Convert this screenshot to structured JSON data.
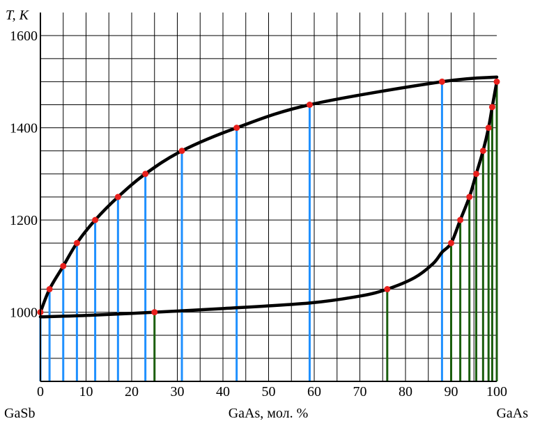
{
  "chart_data": {
    "type": "line",
    "ylabel": "T, К",
    "xlabel": "GaAs, мол. %",
    "x_left_label": "GaSb",
    "x_right_label": "GaAs",
    "xlim": [
      0,
      100
    ],
    "ylim": [
      850,
      1650
    ],
    "x_ticks": [
      0,
      10,
      20,
      30,
      40,
      50,
      60,
      70,
      80,
      90,
      100
    ],
    "y_ticks": [
      1000,
      1200,
      1400,
      1600
    ],
    "grid": true,
    "series": [
      {
        "kind": "liquidus",
        "x": [
          0,
          2,
          5,
          8,
          12,
          17,
          23,
          31,
          43,
          59,
          88,
          100
        ],
        "y": [
          1000,
          1050,
          1100,
          1150,
          1200,
          1250,
          1300,
          1350,
          1400,
          1450,
          1500,
          1510
        ]
      },
      {
        "kind": "solidus",
        "x": [
          0,
          10,
          25,
          40,
          59,
          70,
          76,
          82,
          86,
          88,
          90,
          92,
          94,
          95.5,
          97,
          98.2,
          99,
          100
        ],
        "y": [
          990,
          993,
          1000,
          1008,
          1020,
          1035,
          1050,
          1075,
          1105,
          1130,
          1150,
          1200,
          1250,
          1300,
          1350,
          1400,
          1445,
          1500
        ]
      }
    ],
    "markers": [
      {
        "x": 0,
        "y": 1000,
        "line": "blue"
      },
      {
        "x": 2,
        "y": 1050,
        "line": "blue"
      },
      {
        "x": 5,
        "y": 1100,
        "line": "blue"
      },
      {
        "x": 8,
        "y": 1150,
        "line": "blue"
      },
      {
        "x": 12,
        "y": 1200,
        "line": "blue"
      },
      {
        "x": 17,
        "y": 1250,
        "line": "blue"
      },
      {
        "x": 23,
        "y": 1300,
        "line": "blue"
      },
      {
        "x": 31,
        "y": 1350,
        "line": "blue"
      },
      {
        "x": 43,
        "y": 1400,
        "line": "blue"
      },
      {
        "x": 59,
        "y": 1450,
        "line": "blue"
      },
      {
        "x": 88,
        "y": 1500,
        "line": "blue"
      },
      {
        "x": 25,
        "y": 1000,
        "line": "green"
      },
      {
        "x": 76,
        "y": 1050,
        "line": "green"
      },
      {
        "x": 90,
        "y": 1150,
        "line": "green"
      },
      {
        "x": 92,
        "y": 1200,
        "line": "green"
      },
      {
        "x": 94,
        "y": 1250,
        "line": "green"
      },
      {
        "x": 95.5,
        "y": 1300,
        "line": "green"
      },
      {
        "x": 97,
        "y": 1350,
        "line": "green"
      },
      {
        "x": 98.2,
        "y": 1400,
        "line": "green"
      },
      {
        "x": 99,
        "y": 1445,
        "line": "green"
      },
      {
        "x": 100,
        "y": 1500,
        "line": "green"
      }
    ],
    "colors": {
      "curve": "#000000",
      "marker": "#e8201c",
      "liquidus_drop": "#1e90ff",
      "solidus_drop": "#1b5e0e",
      "grid": "#000000"
    }
  }
}
